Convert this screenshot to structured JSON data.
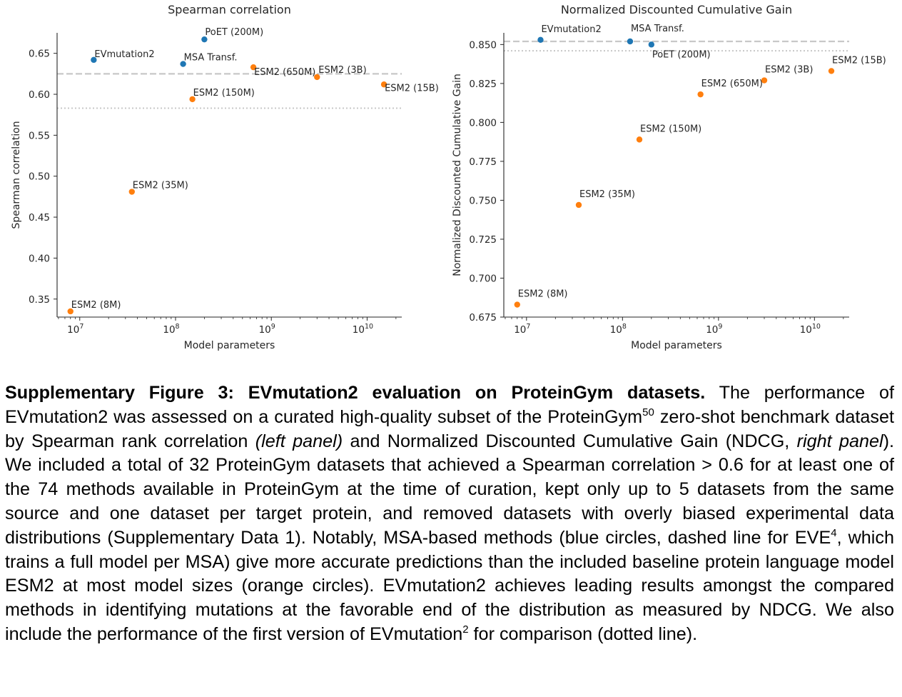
{
  "chart_data": [
    {
      "type": "scatter",
      "title": "Spearman correlation",
      "xlabel": "Model parameters",
      "ylabel": "Spearman correlation",
      "xscale": "log",
      "xlim": [
        5800000.0,
        23000000000.0
      ],
      "ylim": [
        0.328,
        0.675
      ],
      "yticks": [
        "0.35",
        "0.40",
        "0.45",
        "0.50",
        "0.55",
        "0.60",
        "0.65"
      ],
      "xticks": [
        {
          "base": "10",
          "exp": "7"
        },
        {
          "base": "10",
          "exp": "8"
        },
        {
          "base": "10",
          "exp": "9"
        },
        {
          "base": "10",
          "exp": "10"
        }
      ],
      "hlines": [
        {
          "y": 0.625,
          "style": "dashed"
        },
        {
          "y": 0.583,
          "style": "dotted"
        }
      ],
      "series": [
        {
          "color": "#1f77b4",
          "points": [
            {
              "label": "EVmutation2",
              "x": 14000000.0,
              "y": 0.642
            },
            {
              "label": "MSA Transf.",
              "x": 120000000.0,
              "y": 0.637
            },
            {
              "label": "PoET (200M)",
              "x": 200000000.0,
              "y": 0.667
            }
          ]
        },
        {
          "color": "#ff7f0e",
          "points": [
            {
              "label": "ESM2 (8M)",
              "x": 8000000.0,
              "y": 0.335
            },
            {
              "label": "ESM2 (35M)",
              "x": 35000000.0,
              "y": 0.481
            },
            {
              "label": "ESM2 (150M)",
              "x": 150000000.0,
              "y": 0.594
            },
            {
              "label": "ESM2 (650M)",
              "x": 650000000.0,
              "y": 0.633
            },
            {
              "label": "ESM2 (3B)",
              "x": 3000000000.0,
              "y": 0.621
            },
            {
              "label": "ESM2 (15B)",
              "x": 15000000000.0,
              "y": 0.612
            }
          ]
        }
      ]
    },
    {
      "type": "scatter",
      "title": "Normalized Discounted Cumulative Gain",
      "xlabel": "Model parameters",
      "ylabel": "Normalized Discounted Cumulative Gain",
      "xscale": "log",
      "xlim": [
        5800000.0,
        23000000000.0
      ],
      "ylim": [
        0.675,
        0.8575
      ],
      "yticks": [
        "0.675",
        "0.700",
        "0.725",
        "0.750",
        "0.775",
        "0.800",
        "0.825",
        "0.850"
      ],
      "xticks": [
        {
          "base": "10",
          "exp": "7"
        },
        {
          "base": "10",
          "exp": "8"
        },
        {
          "base": "10",
          "exp": "9"
        },
        {
          "base": "10",
          "exp": "10"
        }
      ],
      "hlines": [
        {
          "y": 0.852,
          "style": "dashed"
        },
        {
          "y": 0.846,
          "style": "dotted"
        }
      ],
      "series": [
        {
          "color": "#1f77b4",
          "points": [
            {
              "label": "EVmutation2",
              "x": 14000000.0,
              "y": 0.853
            },
            {
              "label": "MSA Transf.",
              "x": 120000000.0,
              "y": 0.852
            },
            {
              "label": "PoET (200M)",
              "x": 200000000.0,
              "y": 0.85
            }
          ]
        },
        {
          "color": "#ff7f0e",
          "points": [
            {
              "label": "ESM2 (8M)",
              "x": 8000000.0,
              "y": 0.683
            },
            {
              "label": "ESM2 (35M)",
              "x": 35000000.0,
              "y": 0.747
            },
            {
              "label": "ESM2 (150M)",
              "x": 150000000.0,
              "y": 0.789
            },
            {
              "label": "ESM2 (650M)",
              "x": 650000000.0,
              "y": 0.818
            },
            {
              "label": "ESM2 (3B)",
              "x": 3000000000.0,
              "y": 0.827
            },
            {
              "label": "ESM2 (15B)",
              "x": 15000000000.0,
              "y": 0.833
            }
          ]
        }
      ]
    }
  ],
  "caption": {
    "bold": "Supplementary Figure 3: EVmutation2 evaluation on ProteinGym datasets.",
    "p1": " The performance of EVmutation2 was assessed on a curated high-quality subset of the ProteinGym",
    "ref1": "50",
    "p2": " zero-shot benchmark dataset by Spearman rank correlation ",
    "i1": "(left panel)",
    "p3": " and Normalized Discounted Cumulative Gain (NDCG, ",
    "i2": "right panel",
    "p4": "). We included a total of 32 ProteinGym datasets that achieved a Spearman correlation > 0.6 for at least one of the 74 methods available in ProteinGym at the time of curation, kept only up to 5 datasets from the same source and one dataset per target protein, and removed datasets with overly biased experimental data distributions (Supplementary Data 1). Notably, MSA-based methods (blue circles, dashed line for EVE",
    "ref2": "4",
    "p5": ", which trains a full model per MSA) give more accurate predictions than the included baseline protein language model ESM2 at most model sizes (orange circles). EVmutation2 achieves leading results amongst the compared methods in identifying mutations at the favorable end of the distribution as measured by NDCG. We also include the performance of the first version of EVmutation",
    "ref3": "2",
    "p6": " for comparison (dotted line)."
  }
}
